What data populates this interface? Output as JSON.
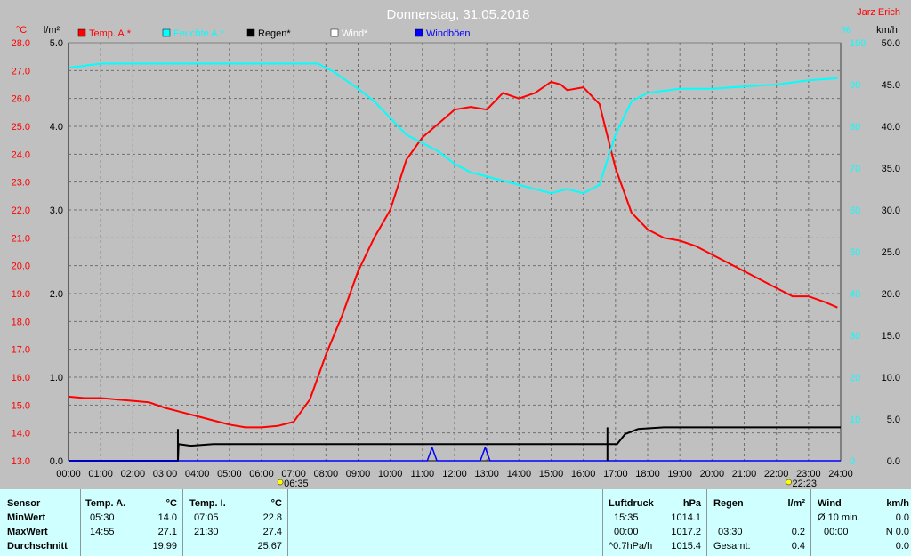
{
  "chart_data": {
    "type": "line",
    "title": "Donnerstag, 31.05.2018",
    "station": "Jarz Erich",
    "axes": {
      "left_outer": {
        "unit": "°C",
        "min": 13.0,
        "max": 28.0,
        "ticks": [
          "13.0",
          "14.0",
          "15.0",
          "16.0",
          "17.0",
          "18.0",
          "19.0",
          "20.0",
          "21.0",
          "22.0",
          "23.0",
          "24.0",
          "25.0",
          "26.0",
          "27.0",
          "28.0"
        ]
      },
      "left_inner": {
        "unit": "l/m²",
        "min": 0.0,
        "max": 5.0,
        "ticks": [
          "0.0",
          "1.0",
          "2.0",
          "3.0",
          "4.0",
          "5.0"
        ]
      },
      "right_inner": {
        "unit": "%",
        "min": 0,
        "max": 100,
        "ticks": [
          "0",
          "10",
          "20",
          "30",
          "40",
          "50",
          "60",
          "70",
          "80",
          "90",
          "100"
        ]
      },
      "right_outer": {
        "unit": "km/h",
        "min": 0.0,
        "max": 50.0,
        "ticks": [
          "0.0",
          "5.0",
          "10.0",
          "15.0",
          "20.0",
          "25.0",
          "30.0",
          "35.0",
          "40.0",
          "45.0",
          "50.0"
        ]
      },
      "x": {
        "min": 0,
        "max": 24,
        "ticks": [
          "00:00",
          "01:00",
          "02:00",
          "03:00",
          "04:00",
          "05:00",
          "06:00",
          "07:00",
          "08:00",
          "09:00",
          "10:00",
          "11:00",
          "12:00",
          "13:00",
          "14:00",
          "15:00",
          "16:00",
          "17:00",
          "18:00",
          "19:00",
          "20:00",
          "21:00",
          "22:00",
          "23:00",
          "24:00"
        ]
      }
    },
    "grid": true,
    "legend": [
      {
        "label": "Temp. A.*",
        "color": "#ff0000"
      },
      {
        "label": "Feuchte A.*",
        "color": "#00ffff"
      },
      {
        "label": "Regen*",
        "color": "#000000"
      },
      {
        "label": "Wind*",
        "color": "#ffffff"
      },
      {
        "label": "Windböen",
        "color": "#0000ff"
      }
    ],
    "sun": {
      "sunrise": "06:35",
      "sunset": "22:23"
    },
    "series": [
      {
        "name": "Temp. A.*",
        "color": "#ff0000",
        "axis": "left_outer",
        "x": [
          0,
          0.5,
          1,
          1.5,
          2,
          2.5,
          3,
          3.5,
          4,
          4.5,
          5,
          5.5,
          6,
          6.5,
          7,
          7.5,
          8,
          8.5,
          9,
          9.5,
          10,
          10.5,
          11,
          11.5,
          12,
          12.5,
          13,
          13.5,
          14,
          14.5,
          15,
          15.3,
          15.5,
          16,
          16.5,
          17,
          17.5,
          18,
          18.5,
          19,
          19.5,
          20,
          20.5,
          21,
          21.5,
          22,
          22.5,
          23,
          23.5,
          23.9
        ],
        "y": [
          15.3,
          15.25,
          15.25,
          15.2,
          15.15,
          15.1,
          14.9,
          14.75,
          14.6,
          14.45,
          14.3,
          14.2,
          14.2,
          14.25,
          14.4,
          15.2,
          16.8,
          18.2,
          19.8,
          21.0,
          22.0,
          23.8,
          24.6,
          25.1,
          25.6,
          25.7,
          25.6,
          26.2,
          26.0,
          26.2,
          26.6,
          26.5,
          26.3,
          26.4,
          25.8,
          23.5,
          21.9,
          21.3,
          21.0,
          20.9,
          20.7,
          20.4,
          20.1,
          19.8,
          19.5,
          19.2,
          18.9,
          18.9,
          18.7,
          18.5
        ]
      },
      {
        "name": "Feuchte A.*",
        "color": "#00ffff",
        "axis": "right_inner",
        "x": [
          0,
          1,
          2,
          3,
          4,
          5,
          6,
          7,
          7.75,
          8.25,
          9,
          9.5,
          10,
          10.5,
          11,
          11.5,
          12,
          12.5,
          13,
          13.5,
          14,
          14.5,
          15,
          15.5,
          16,
          16.5,
          17,
          17.5,
          18,
          19,
          20,
          21,
          22,
          23,
          23.9
        ],
        "y": [
          94,
          95,
          95,
          95,
          95,
          95,
          95,
          95,
          95,
          93,
          89,
          86,
          82,
          78,
          76,
          74,
          71,
          69,
          68,
          67,
          66,
          65,
          64,
          65,
          64,
          66,
          78,
          86,
          88,
          89,
          89,
          89.5,
          90,
          91,
          91.5
        ]
      },
      {
        "name": "Regen*",
        "color": "#000000",
        "axis": "left_inner",
        "step": true,
        "x": [
          0,
          3.4,
          3.42,
          3.8,
          4.5,
          17,
          17.05,
          17.3,
          17.7,
          18.5,
          24
        ],
        "y": [
          0,
          0,
          0.2,
          0.18,
          0.2,
          0.2,
          0.2,
          0.32,
          0.38,
          0.4,
          0.4
        ]
      },
      {
        "name": "Windböen",
        "color": "#0000ff",
        "axis": "right_outer",
        "x": [
          0,
          11.15,
          11.3,
          11.45,
          12.8,
          12.95,
          13.1,
          24
        ],
        "y": [
          0,
          0,
          1.6,
          0,
          0,
          1.6,
          0,
          0
        ]
      }
    ]
  },
  "panel": {
    "sensor": {
      "title": "Sensor",
      "rows": [
        "MinWert",
        "MaxWert",
        "Durchschnitt"
      ]
    },
    "temp_a": {
      "title": "Temp. A.",
      "unit": "°C",
      "min_time": "05:30",
      "min_val": "14.0",
      "max_time": "14:55",
      "max_val": "27.1",
      "avg": "19.99"
    },
    "temp_i": {
      "title": "Temp. I.",
      "unit": "°C",
      "min_time": "07:05",
      "min_val": "22.8",
      "max_time": "21:30",
      "max_val": "27.4",
      "avg": "25.67"
    },
    "luftdruck": {
      "title": "Luftdruck",
      "unit": "hPa",
      "min_time": "15:35",
      "min_val": "1014.1",
      "max_time": "00:00",
      "max_val": "1017.2",
      "avg_label": "^0.7hPa/h",
      "avg": "1015.4"
    },
    "regen": {
      "title": "Regen",
      "unit": "l/m²",
      "row2_time": "03:30",
      "row2_val": "0.2",
      "total_label": "Gesamt:",
      "total": "0.4"
    },
    "wind": {
      "title": "Wind",
      "unit": "km/h",
      "row1_label": "Ø 10 min.",
      "row1_val": "0.0",
      "row2_time": "00:00",
      "row2_val": "N 0.0",
      "row3_val": "0.0"
    }
  }
}
